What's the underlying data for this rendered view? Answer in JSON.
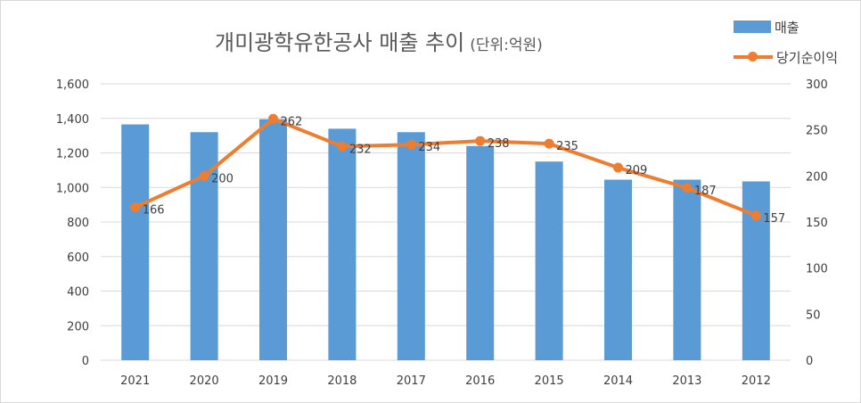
{
  "title": "개미광학유한공사 매출 추이",
  "subtitle": "(단위:억원)",
  "legend": {
    "bar_label": "매출",
    "line_label": "당기순이익"
  },
  "colors": {
    "bar": "#5b9bd5",
    "line": "#ed7d31",
    "grid": "#d9d9d9",
    "tick_text": "#404040"
  },
  "chart_data": {
    "type": "bar",
    "title": "개미광학유한공사 매출 추이 (단위:억원)",
    "categories": [
      "2021",
      "2020",
      "2019",
      "2018",
      "2017",
      "2016",
      "2015",
      "2014",
      "2013",
      "2012"
    ],
    "series": [
      {
        "name": "매출",
        "type": "bar",
        "axis": "left",
        "values": [
          1365,
          1320,
          1395,
          1340,
          1320,
          1240,
          1150,
          1045,
          1045,
          1035
        ]
      },
      {
        "name": "당기순이익",
        "type": "line",
        "axis": "right",
        "values": [
          166,
          200,
          262,
          232,
          234,
          238,
          235,
          209,
          187,
          157
        ],
        "labels": [
          "166",
          "200",
          "262",
          "232",
          "234",
          "238",
          "235",
          "209",
          "187",
          "157"
        ]
      }
    ],
    "y_left": {
      "min": 0,
      "max": 1600,
      "ticks": [
        0,
        200,
        400,
        600,
        800,
        1000,
        1200,
        1400,
        1600
      ],
      "tick_labels": [
        "0",
        "200",
        "400",
        "600",
        "800",
        "1,000",
        "1,200",
        "1,400",
        "1,600"
      ]
    },
    "y_right": {
      "min": 0,
      "max": 300,
      "ticks": [
        0,
        50,
        100,
        150,
        200,
        250,
        300
      ],
      "tick_labels": [
        "0",
        "50",
        "100",
        "150",
        "200",
        "250",
        "300"
      ]
    },
    "grid": true,
    "legend_position": "top-right"
  }
}
